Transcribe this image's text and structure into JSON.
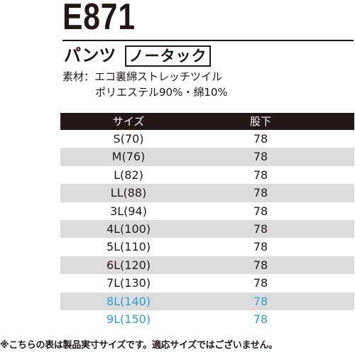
{
  "product": {
    "code": "E871",
    "category": "パンツ",
    "tag": "ノータック",
    "material_line1": "素材：エコ裏綿ストレッチツイル",
    "material_line2": "ポリエステル90%・綿10%"
  },
  "table": {
    "headers": [
      "サイズ",
      "股下"
    ],
    "rows": [
      {
        "size": "S(70)",
        "inseam": "78"
      },
      {
        "size": "M(76)",
        "inseam": "78"
      },
      {
        "size": "L(82)",
        "inseam": "78"
      },
      {
        "size": "LL(88)",
        "inseam": "78"
      },
      {
        "size": "3L(94)",
        "inseam": "78"
      },
      {
        "size": "4L(100)",
        "inseam": "78"
      },
      {
        "size": "5L(110)",
        "inseam": "78"
      },
      {
        "size": "6L(120)",
        "inseam": "78"
      },
      {
        "size": "7L(130)",
        "inseam": "78"
      },
      {
        "size": "8L(140)",
        "inseam": "78"
      },
      {
        "size": "9L(150)",
        "inseam": "78"
      }
    ]
  },
  "colors": {
    "text": "#231815",
    "header_bg": "#231815",
    "stripe": "#dcdcdc",
    "highlight": "#2a9fd4"
  },
  "footnote": "※こちらの表は製品実寸サイズです。適応サイズではございません。"
}
